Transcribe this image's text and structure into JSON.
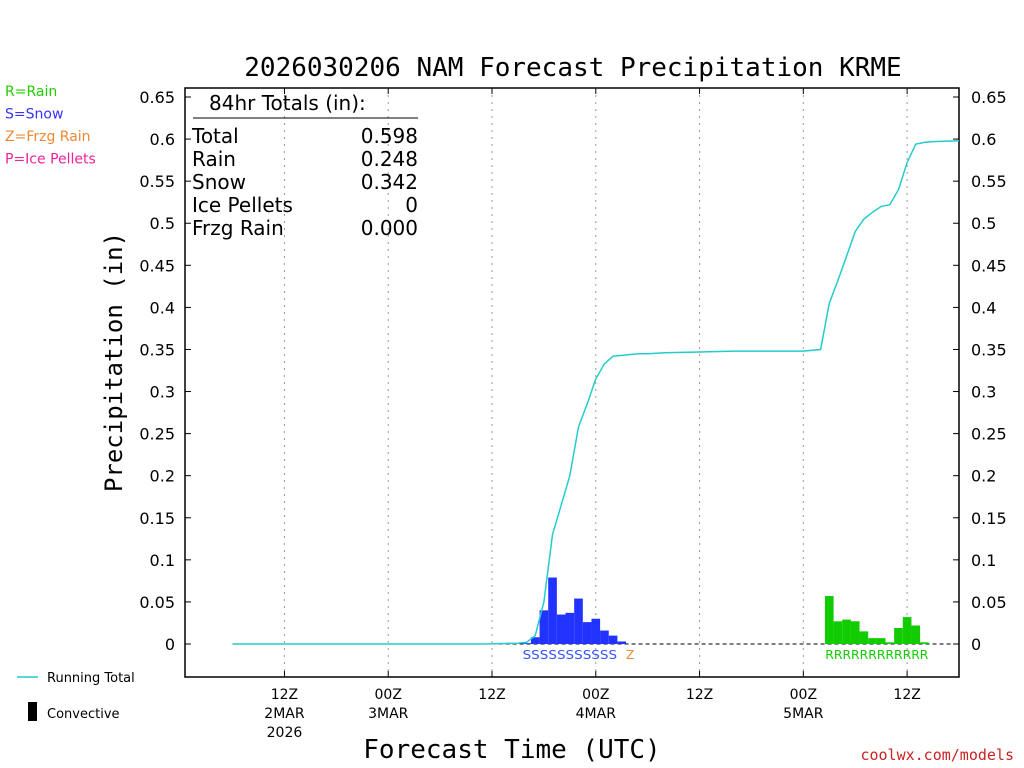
{
  "chart_data": {
    "type": "bar+line",
    "title": "2026030206 NAM Forecast Precipitation KRME",
    "ylabel": "Precipitation (in)",
    "xlabel": "Forecast Time (UTC)",
    "ylim": [
      0,
      0.65
    ],
    "xlim_hours": [
      -5.5,
      84
    ],
    "yticks": [
      "0",
      "0.05",
      "0.1",
      "0.15",
      "0.2",
      "0.25",
      "0.3",
      "0.35",
      "0.4",
      "0.45",
      "0.5",
      "0.55",
      "0.6",
      "0.65"
    ],
    "xticks": [
      {
        "hour": 6,
        "line1": "12Z",
        "line2": "2MAR",
        "line3": "2026"
      },
      {
        "hour": 18,
        "line1": "00Z",
        "line2": "3MAR",
        "line3": ""
      },
      {
        "hour": 30,
        "line1": "12Z",
        "line2": "",
        "line3": ""
      },
      {
        "hour": 42,
        "line1": "00Z",
        "line2": "4MAR",
        "line3": ""
      },
      {
        "hour": 54,
        "line1": "12Z",
        "line2": "",
        "line3": ""
      },
      {
        "hour": 66,
        "line1": "00Z",
        "line2": "5MAR",
        "line3": ""
      },
      {
        "hour": 78,
        "line1": "12Z",
        "line2": "",
        "line3": ""
      }
    ],
    "precip_type_legend": [
      {
        "label": "R=Rain",
        "color": "#22cc00"
      },
      {
        "label": "S=Snow",
        "color": "#3333ff"
      },
      {
        "label": "Z=Frzg Rain",
        "color": "#ee8833"
      },
      {
        "label": "P=Ice Pellets",
        "color": "#ee2299"
      }
    ],
    "series_legend": [
      {
        "label": "Running Total",
        "color": "#22cccc",
        "kind": "line"
      },
      {
        "label": "Convective",
        "color": "#000000",
        "kind": "bar"
      }
    ],
    "totals": {
      "header": "84hr Totals (in):",
      "rows": [
        {
          "label": "Total",
          "value": "0.598"
        },
        {
          "label": "Rain",
          "value": "0.248"
        },
        {
          "label": "Snow",
          "value": "0.342"
        },
        {
          "label": "Ice Pellets",
          "value": "0"
        },
        {
          "label": "Frzg Rain",
          "value": "0.000"
        }
      ]
    },
    "snow_bars": {
      "color": "#2233ff",
      "hours": [
        34,
        35,
        36,
        37,
        38,
        39,
        40,
        41,
        42,
        43,
        44,
        45
      ],
      "values": [
        0.001,
        0.008,
        0.04,
        0.079,
        0.035,
        0.037,
        0.054,
        0.026,
        0.03,
        0.016,
        0.01,
        0.003
      ]
    },
    "rain_bars": {
      "color": "#11cc00",
      "hours": [
        69,
        70,
        71,
        72,
        73,
        74,
        75,
        76,
        77,
        78,
        79,
        80
      ],
      "values": [
        0.057,
        0.027,
        0.029,
        0.027,
        0.015,
        0.007,
        0.007,
        0.002,
        0.019,
        0.032,
        0.022,
        0.002
      ]
    },
    "running_total": {
      "color": "#22cccc",
      "hours": [
        0,
        29,
        33,
        34,
        35,
        36,
        37,
        38,
        39,
        40,
        41,
        42,
        43,
        44,
        45,
        46,
        47,
        48,
        50,
        54,
        58,
        62,
        66,
        68,
        69,
        70,
        71,
        72,
        73,
        74,
        75,
        76,
        77,
        78,
        79,
        80,
        81,
        84
      ],
      "values": [
        0,
        0,
        0.001,
        0.002,
        0.01,
        0.05,
        0.13,
        0.165,
        0.2,
        0.258,
        0.285,
        0.315,
        0.333,
        0.342,
        0.343,
        0.344,
        0.345,
        0.345,
        0.346,
        0.347,
        0.348,
        0.348,
        0.348,
        0.35,
        0.405,
        0.432,
        0.461,
        0.49,
        0.505,
        0.513,
        0.52,
        0.522,
        0.54,
        0.572,
        0.594,
        0.596,
        0.597,
        0.598
      ]
    },
    "snow_type_label": {
      "text": "SSSSSSSSSSS",
      "color": "#3355ff",
      "start_hour": 34,
      "end_hour": 44
    },
    "frz_type_label": {
      "text": "Z",
      "color": "#ee8833",
      "hour": 45.5
    },
    "rain_type_label": {
      "text": "RRRRRRRRRRRR",
      "color": "#11cc00",
      "start_hour": 69,
      "end_hour": 80
    }
  },
  "credit": "coolwx.com/models"
}
